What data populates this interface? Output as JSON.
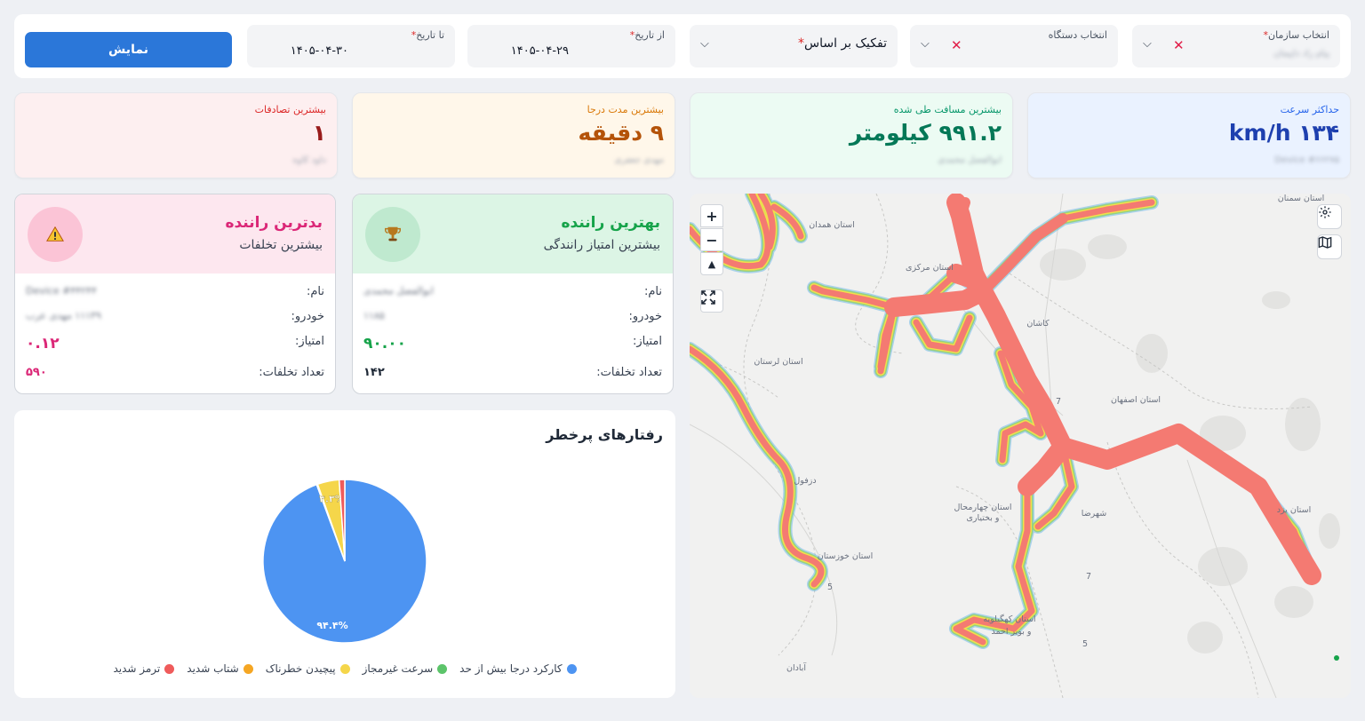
{
  "filters": {
    "organization": {
      "label": "انتخاب سازمان",
      "value": "پیام راد داپیمان"
    },
    "device": {
      "label": "انتخاب دستگاه"
    },
    "breakdown": {
      "label": "تفکیک بر اساس"
    },
    "from_date": {
      "label": "از تاریخ",
      "value": "۱۴۰۵-۰۴-۲۹"
    },
    "to_date": {
      "label": "تا تاریخ",
      "value": "۱۴۰۵-۰۴-۳۰"
    },
    "required_mark": "*",
    "clear_icon": "close-icon",
    "dropdown_icon": "chevron-down-icon",
    "show_button": "نمایش"
  },
  "stats": {
    "max_speed": {
      "title": "حداکثر سرعت",
      "value": "km/h ۱۳۴",
      "sub": "Device #۶۶۲۷۵",
      "color": "#1e40af",
      "title_color": "#2563eb",
      "bg": "#eaf2ff"
    },
    "max_distance": {
      "title": "بیشترین مسافت طی شده",
      "value": "۹۹۱.۲ کیلومتر",
      "sub": "ابوالفضل محمدی",
      "color": "#047857",
      "title_color": "#059669",
      "bg": "#ecfbf3"
    },
    "max_overheat": {
      "title": "بیشترین مدت درجا",
      "value": "۹ دقیقه",
      "sub": "مهدی جعفری",
      "color": "#b45309",
      "title_color": "#d97706",
      "bg": "#fff7ea"
    },
    "max_accidents": {
      "title": "بیشترین تصادفات",
      "value": "۱",
      "sub": "داود کاوه",
      "color": "#991b1b",
      "title_color": "#dc2626",
      "bg": "#fdeff0"
    }
  },
  "best_driver": {
    "title": "بهترین راننده",
    "subtitle": "بیشترین امتیاز رانندگی",
    "icon": "trophy-icon",
    "name_label": "نام:",
    "name": "ابوالفضل محمدی",
    "vehicle_label": "خودرو:",
    "vehicle": "۱۱۸۵",
    "score_label": "امتیاز:",
    "score": "۹۰.۰۰",
    "violations_label": "تعداد تخلفات:",
    "violations": "۱۴۲",
    "accent": "#16a34a",
    "head_bg": "#dcf5e5"
  },
  "worst_driver": {
    "title": "بدترین راننده",
    "subtitle": "بیشترین تخلفات",
    "icon": "warning-icon",
    "name_label": "نام:",
    "name": "Device #۴۴۲۴۴",
    "vehicle_label": "خودرو:",
    "vehicle": "۱۱۱۳۹ مهدی عرب",
    "score_label": "امتیاز:",
    "score": "۰.۱۲",
    "violations_label": "تعداد تخلفات:",
    "violations": "۵۹۰",
    "accent": "#db2777",
    "head_bg": "#fde7ef"
  },
  "risky_behaviors": {
    "title": "رفتارهای پرخطر"
  },
  "chart_data": {
    "type": "pie",
    "title": "رفتارهای پرخطر",
    "labels": [
      "کارکرد درجا بیش از حد",
      "سرعت غیرمجاز",
      "پیچیدن خطرناک",
      "شتاب شدید",
      "ترمز شدید"
    ],
    "values": [
      94.4,
      0.2,
      4.3,
      0.0,
      1.1
    ],
    "value_labels": [
      "۹۴.۴%",
      "",
      "۴.۳%",
      "",
      ""
    ],
    "colors": [
      "#4d94f2",
      "#5cc46a",
      "#f5d64a",
      "#f5a623",
      "#ef5b5b"
    ],
    "legend_position": "bottom"
  },
  "map": {
    "zoom_in": "+",
    "zoom_out": "−",
    "compass": "▲",
    "fullscreen_icon": "fullscreen-icon",
    "settings_icon": "gear-icon",
    "layers_icon": "map-icon",
    "cities": [
      "استان سمنان",
      "استان همدان",
      "استان مرکزی",
      "کاشان",
      "استان لرستان",
      "استان اصفهان",
      "دزفول",
      "استان چهارمحال",
      "و بختیاری",
      "شهرضا",
      "استان یزد",
      "استان خوزستان",
      "استان کهگیلویه",
      "و بویر احمد",
      "آبادان"
    ],
    "road_numbers": [
      "7",
      "5",
      "7",
      "5"
    ]
  }
}
